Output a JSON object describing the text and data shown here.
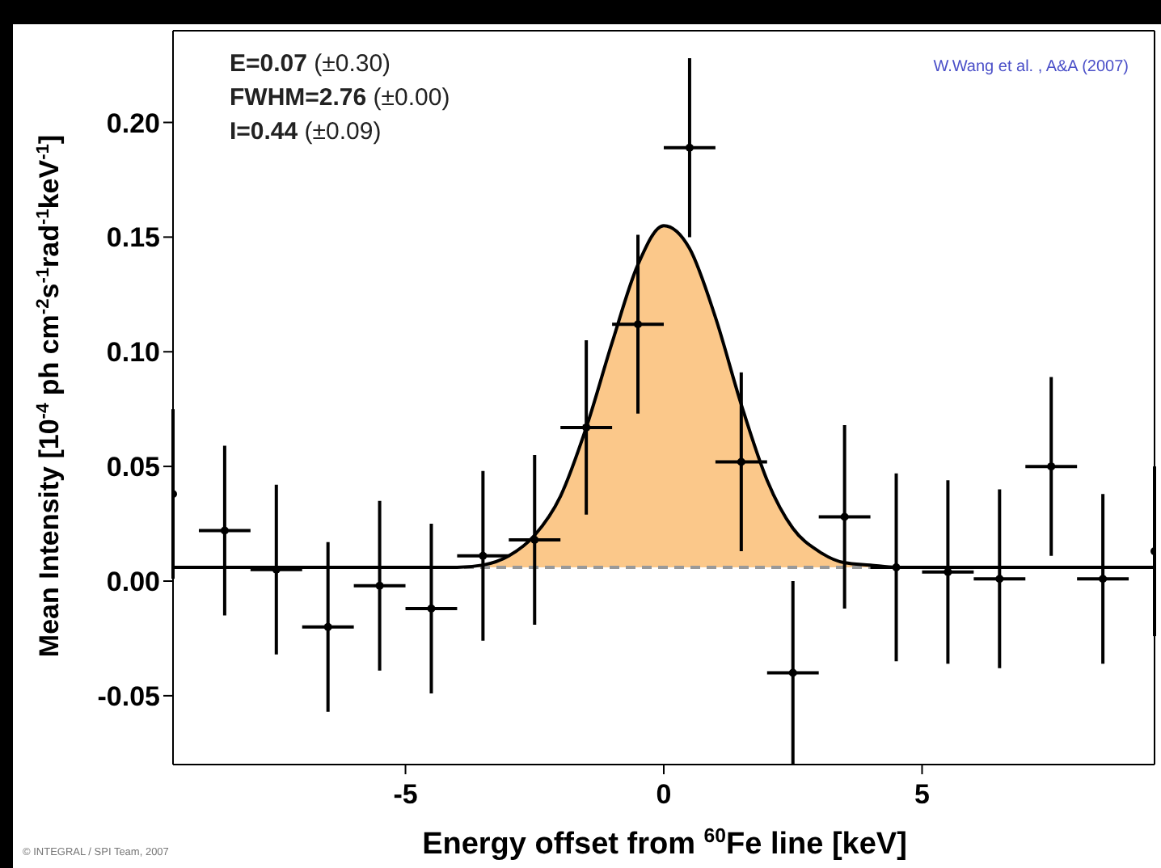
{
  "chart_data": {
    "type": "scatter",
    "xlabel": "Energy offset from $^{60}$Fe line [keV]",
    "ylabel": "Mean Intensity [10$^{-4}$ ph cm$^{-2}$s$^{-1}$rad$^{-1}$keV$^{-1}$]",
    "xlim": [
      -9.5,
      9.5
    ],
    "xticks": [
      -5,
      0,
      5
    ],
    "ylim": [
      -0.08,
      0.24
    ],
    "yticks": [
      {
        "value": -0.05,
        "label": "-0.05"
      },
      {
        "value": 0,
        "label": "0.00"
      },
      {
        "value": 0.05,
        "label": "0.05"
      },
      {
        "value": 0.1,
        "label": "0.10"
      },
      {
        "value": 0.15,
        "label": "0.15"
      },
      {
        "value": 0.2,
        "label": "0.20"
      }
    ],
    "annotations": [
      "E=0.07 (±0.30)",
      "FWHM=2.76 (±0.00)",
      "I=0.44 (±0.09)",
      "W.Wang et al. , A&A (2007)",
      "© INTEGRAL / SPI Team, 2007"
    ],
    "ref_lines": [
      {
        "axis": "y",
        "value": 0.006,
        "line_style": "dashed",
        "color": "#999999"
      }
    ],
    "series": [
      {
        "type": "area",
        "color": "#fbc88a",
        "x": [
          -4.5,
          -4,
          -3.5,
          -3,
          -2.5,
          -2,
          -1.5,
          -1,
          -0.5,
          0,
          0.5,
          1,
          1.5,
          2,
          2.5,
          3,
          3.5,
          4,
          4.5
        ],
        "values": [
          0.006,
          0.006,
          0.007,
          0.011,
          0.02,
          0.037,
          0.067,
          0.104,
          0.138,
          0.155,
          0.145,
          0.115,
          0.077,
          0.044,
          0.023,
          0.013,
          0.008,
          0.007,
          0.006
        ]
      },
      {
        "type": "line",
        "color": "#000000",
        "x": [
          -9.5,
          -4.5,
          -4,
          -3.5,
          -3,
          -2.5,
          -2,
          -1.5,
          -1,
          -0.5,
          0,
          0.5,
          1,
          1.5,
          2,
          2.5,
          3,
          3.5,
          4,
          4.5,
          9.5
        ],
        "values": [
          0.006,
          0.006,
          0.006,
          0.007,
          0.011,
          0.02,
          0.037,
          0.067,
          0.104,
          0.138,
          0.155,
          0.145,
          0.115,
          0.077,
          0.044,
          0.023,
          0.013,
          0.008,
          0.007,
          0.006,
          0.006
        ]
      },
      {
        "color": "#000000",
        "marker": "circle",
        "x": [
          -9.5,
          -8.5,
          -7.5,
          -6.5,
          -5.5,
          -4.5,
          -3.5,
          -2.5,
          -1.5,
          -0.5,
          0.5,
          1.5,
          2.5,
          3.5,
          4.5,
          5.5,
          6.5,
          7.5,
          8.5,
          9.5
        ],
        "values": [
          0.038,
          0.022,
          0.005,
          -0.02,
          -0.002,
          -0.012,
          0.011,
          0.018,
          0.067,
          0.112,
          0.189,
          0.052,
          -0.04,
          0.028,
          0.006,
          0.004,
          0.001,
          0.05,
          0.001,
          0.013
        ],
        "errors": [
          0.037,
          0.037,
          0.037,
          0.037,
          0.037,
          0.037,
          0.037,
          0.037,
          0.038,
          0.039,
          0.039,
          0.039,
          0.04,
          0.04,
          0.041,
          0.04,
          0.039,
          0.039,
          0.037,
          0.037
        ],
        "xerrors": [
          null,
          0.5,
          0.5,
          0.5,
          0.5,
          0.5,
          0.5,
          0.5,
          0.5,
          0.5,
          0.5,
          0.5,
          0.5,
          0.5,
          0.5,
          0.5,
          0.5,
          0.5,
          0.5,
          null
        ]
      }
    ]
  }
}
